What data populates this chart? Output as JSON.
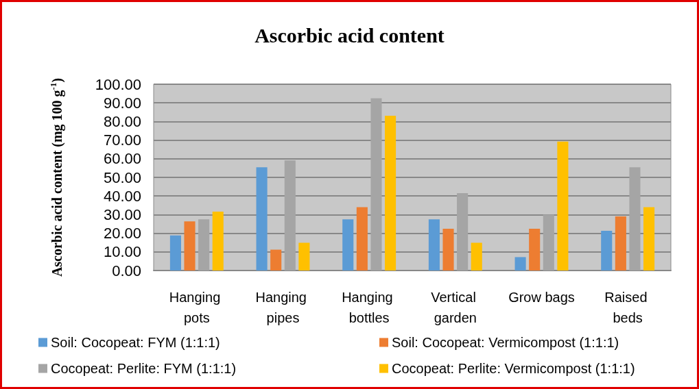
{
  "chart_data": {
    "type": "bar",
    "title": "Ascorbic acid content",
    "ylabel": "Ascorbic acid content (mg 100 g$^{-1}$)",
    "categories": [
      "Hanging pots",
      "Hanging pipes",
      "Hanging bottles",
      "Vertical garden",
      "Grow bags",
      "Raised beds"
    ],
    "series": [
      {
        "name": "Soil: Cocopeat: FYM (1:1:1)",
        "color": "#5b9bd5",
        "values": [
          18.8,
          55.4,
          27.5,
          27.5,
          7.2,
          21.3
        ]
      },
      {
        "name": "Soil: Cocopeat: Vermicompost (1:1:1)",
        "color": "#ed7d31",
        "values": [
          26.4,
          11.2,
          34.0,
          22.4,
          22.4,
          29.0
        ]
      },
      {
        "name": "Cocopeat: Perlite: FYM (1:1:1)",
        "color": "#a5a5a5",
        "values": [
          27.5,
          59.1,
          92.5,
          41.5,
          30.0,
          55.4
        ]
      },
      {
        "name": "Cocopeat: Perlite: Vermicompost (1:1:1)",
        "color": "#ffc000",
        "values": [
          31.6,
          14.9,
          83.1,
          14.9,
          69.2,
          34.0
        ]
      }
    ],
    "ylim": [
      0,
      100
    ],
    "yticks": [
      {
        "value": 0,
        "label": "0.00"
      },
      {
        "value": 10,
        "label": "10.00"
      },
      {
        "value": 20,
        "label": "20.00"
      },
      {
        "value": 30,
        "label": "30.00"
      },
      {
        "value": 40,
        "label": "40.00"
      },
      {
        "value": 50,
        "label": "50.00"
      },
      {
        "value": 60,
        "label": "60.00"
      },
      {
        "value": 70,
        "label": "70.00"
      },
      {
        "value": 80,
        "label": "80.00"
      },
      {
        "value": 90,
        "label": "90.00"
      },
      {
        "value": 100,
        "label": "100.00"
      }
    ],
    "grid": "y",
    "legend": "bottom"
  }
}
